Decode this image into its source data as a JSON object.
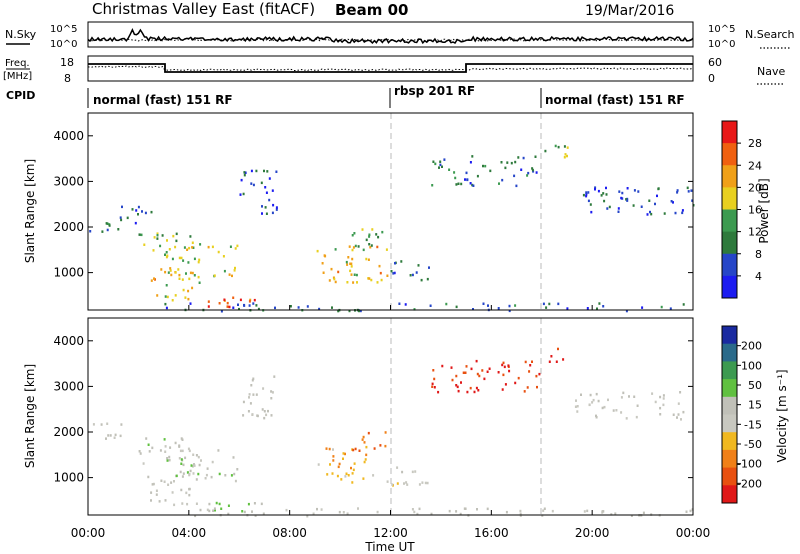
{
  "header": {
    "title": "Christmas Valley East (fitACF)",
    "beam": "Beam 00",
    "date": "19/Mar/2016"
  },
  "panels": {
    "nsky_label": "N.Sky",
    "nsky_ticks": [
      "10^5",
      "10^0"
    ],
    "nsearch_label": "N.Search",
    "nsearch_ticks": [
      "10^5",
      "10^0"
    ],
    "freq_label_1": "Freq.",
    "freq_label_2": "[MHz]",
    "freq_ticks": [
      "18",
      "8"
    ],
    "nave_label": "Nave",
    "nave_ticks": [
      "60",
      "0"
    ],
    "cpid_label": "CPID",
    "cpid_segments": [
      {
        "label": "normal (fast) 151 RF",
        "start_h": 0
      },
      {
        "label": "rbsp 201 RF",
        "start_h": 12
      },
      {
        "label": "normal (fast) 151 RF",
        "start_h": 18
      }
    ]
  },
  "colors": {
    "power": [
      "#1c1cf0",
      "#2646c8",
      "#2e7a3c",
      "#3c9a50",
      "#e8d020",
      "#f0a018",
      "#f06010",
      "#e81818"
    ],
    "velocity": [
      "#e01818",
      "#e85010",
      "#f08018",
      "#f0b820",
      "#c8c8c0",
      "#c0c0b8",
      "#60c040",
      "#3c9a50",
      "#2a6a8a",
      "#1a2aa0"
    ]
  },
  "chart_data": [
    {
      "type": "heatmap",
      "name": "Power",
      "ylabel": "Slant Range [km]",
      "colorbar_label": "Power [dB]",
      "colorbar_ticks": [
        "28",
        "24",
        "20",
        "16",
        "12",
        "8",
        "4"
      ],
      "xlim": [
        0,
        24
      ],
      "ylim": [
        180,
        4500
      ],
      "yticks": [
        "4000",
        "3000",
        "2000",
        "1000"
      ],
      "ytick_values": [
        4000,
        3000,
        2000,
        1000
      ],
      "clim": [
        0,
        32
      ],
      "scatter_regions": [
        {
          "t0": 0.0,
          "t1": 1.3,
          "r0": 1850,
          "r1": 2250,
          "v": 10
        },
        {
          "t0": 1.2,
          "t1": 2.6,
          "r0": 2100,
          "r1": 2500,
          "v": 8
        },
        {
          "t0": 2.0,
          "t1": 4.5,
          "r0": 1300,
          "r1": 1900,
          "v": 14
        },
        {
          "t0": 3.2,
          "t1": 6.0,
          "r0": 950,
          "r1": 1650,
          "v": 18
        },
        {
          "t0": 2.3,
          "t1": 4.4,
          "r0": 420,
          "r1": 1100,
          "v": 20
        },
        {
          "t0": 4.6,
          "t1": 6.8,
          "r0": 200,
          "r1": 480,
          "v": 26
        },
        {
          "t0": 3.0,
          "t1": 24,
          "r0": 180,
          "r1": 350,
          "v": 8
        },
        {
          "t0": 9.0,
          "t1": 12.0,
          "r0": 800,
          "r1": 1600,
          "v": 20
        },
        {
          "t0": 10.3,
          "t1": 11.8,
          "r0": 1550,
          "r1": 2100,
          "v": 14
        },
        {
          "t0": 12.0,
          "t1": 13.5,
          "r0": 850,
          "r1": 1300,
          "v": 8
        },
        {
          "t0": 13.6,
          "t1": 17.9,
          "r0": 2900,
          "r1": 3600,
          "v": 8
        },
        {
          "t0": 18.0,
          "t1": 19.2,
          "r0": 3500,
          "r1": 3850,
          "v": 14
        },
        {
          "t0": 19.3,
          "t1": 24,
          "r0": 2300,
          "r1": 2900,
          "v": 6
        },
        {
          "t0": 6.0,
          "t1": 7.5,
          "r0": 2300,
          "r1": 3300,
          "v": 6
        }
      ]
    },
    {
      "type": "heatmap",
      "name": "Velocity",
      "ylabel": "Slant Range [km]",
      "colorbar_label": "Velocity [m s⁻¹]",
      "colorbar_ticks": [
        "200",
        "100",
        "50",
        "15",
        "-15",
        "-50",
        "-100",
        "-200"
      ],
      "xlim": [
        0,
        24
      ],
      "ylim": [
        180,
        4500
      ],
      "yticks": [
        "4000",
        "3000",
        "2000",
        "1000"
      ],
      "ytick_values": [
        4000,
        3000,
        2000,
        1000
      ],
      "xticks": [
        "00:00",
        "04:00",
        "08:00",
        "12:00",
        "16:00",
        "20:00",
        "00:00"
      ],
      "xtick_values": [
        0,
        4,
        8,
        12,
        16,
        20,
        24
      ],
      "xlabel": "Time UT",
      "clim": [
        -250,
        250
      ],
      "scatter_regions": [
        {
          "t0": 0.0,
          "t1": 1.3,
          "r0": 1850,
          "r1": 2250,
          "v": 0
        },
        {
          "t0": 2.0,
          "t1": 4.5,
          "r0": 1300,
          "r1": 1900,
          "v": 30
        },
        {
          "t0": 2.3,
          "t1": 4.4,
          "r0": 420,
          "r1": 1100,
          "v": 0
        },
        {
          "t0": 3.2,
          "t1": 6.0,
          "r0": 950,
          "r1": 1650,
          "v": 25
        },
        {
          "t0": 4.6,
          "t1": 7.0,
          "r0": 200,
          "r1": 480,
          "v": 40
        },
        {
          "t0": 3.0,
          "t1": 24,
          "r0": 180,
          "r1": 350,
          "v": 10
        },
        {
          "t0": 9.0,
          "t1": 11.2,
          "r0": 900,
          "r1": 1700,
          "v": -80
        },
        {
          "t0": 10.3,
          "t1": 11.8,
          "r0": 1550,
          "r1": 2050,
          "v": -150
        },
        {
          "t0": 11.0,
          "t1": 13.5,
          "r0": 850,
          "r1": 1300,
          "v": -30
        },
        {
          "t0": 13.6,
          "t1": 17.9,
          "r0": 2900,
          "r1": 3600,
          "v": -200
        },
        {
          "t0": 18.0,
          "t1": 19.2,
          "r0": 3500,
          "r1": 3850,
          "v": -220
        },
        {
          "t0": 19.3,
          "t1": 24,
          "r0": 2300,
          "r1": 2900,
          "v": 0
        },
        {
          "t0": 6.0,
          "t1": 7.5,
          "r0": 2300,
          "r1": 3300,
          "v": 10
        }
      ]
    }
  ]
}
